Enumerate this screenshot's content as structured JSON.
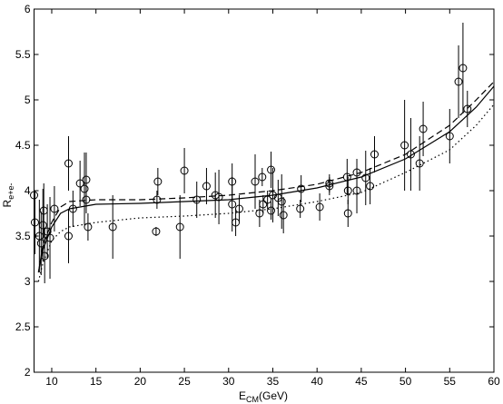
{
  "chart_data": {
    "type": "scatter",
    "x_label": "E",
    "x_label_sub": "CM",
    "x_label_unit": "(GeV)",
    "y_label": "R",
    "y_label_sub": "e+e-",
    "xlim": [
      8,
      60
    ],
    "ylim": [
      2,
      6
    ],
    "xticks": [
      10,
      15,
      20,
      25,
      30,
      35,
      40,
      45,
      50,
      55,
      60
    ],
    "yticks": [
      2,
      2.5,
      3,
      3.5,
      4,
      4.5,
      5,
      5.5,
      6
    ],
    "color": "#000000",
    "x": [
      8.0,
      8.1,
      8.6,
      8.8,
      9.0,
      9.1,
      9.2,
      9.5,
      9.8,
      10.3,
      11.9,
      11.9,
      12.4,
      13.2,
      13.7,
      13.9,
      13.9,
      14.1,
      16.9,
      21.8,
      22.0,
      21.9,
      25.0,
      24.5,
      26.4,
      27.5,
      28.5,
      28.9,
      30.4,
      30.4,
      30.8,
      31.2,
      33.0,
      33.5,
      33.8,
      33.9,
      34.4,
      34.8,
      34.8,
      35.0,
      35.6,
      36.0,
      36.2,
      38.2,
      38.1,
      40.3,
      41.4,
      41.4,
      43.4,
      43.5,
      43.5,
      44.5,
      44.5,
      45.5,
      46.0,
      46.5,
      49.9,
      50.6,
      51.6,
      52.0,
      55.0,
      56.0,
      56.5,
      57.0
    ],
    "y": [
      3.95,
      3.65,
      3.5,
      3.42,
      3.62,
      3.78,
      3.28,
      3.55,
      3.48,
      3.8,
      4.3,
      3.5,
      3.8,
      4.08,
      4.02,
      4.12,
      3.9,
      3.6,
      3.6,
      3.55,
      4.1,
      3.9,
      4.22,
      3.6,
      3.9,
      4.05,
      3.95,
      3.93,
      4.1,
      3.85,
      3.65,
      3.8,
      4.1,
      3.75,
      4.15,
      3.85,
      3.9,
      4.23,
      3.78,
      3.95,
      3.92,
      3.88,
      3.73,
      4.02,
      3.8,
      3.82,
      4.05,
      4.08,
      4.15,
      4.0,
      3.75,
      4.2,
      4.0,
      4.14,
      4.05,
      4.4,
      4.5,
      4.4,
      4.3,
      4.68,
      4.6,
      5.2,
      5.35,
      4.9
    ],
    "yerr": [
      0.25,
      0.35,
      0.4,
      0.35,
      0.4,
      0.3,
      0.3,
      0.3,
      0.45,
      0.25,
      0.3,
      0.3,
      0.2,
      0.25,
      0.4,
      0.3,
      0.15,
      0.15,
      0.35,
      0.05,
      0.15,
      0.1,
      0.25,
      0.35,
      0.2,
      0.2,
      0.25,
      0.3,
      0.2,
      0.3,
      0.15,
      0.15,
      0.3,
      0.15,
      0.1,
      0.1,
      0.1,
      0.2,
      0.1,
      0.3,
      0.2,
      0.3,
      0.2,
      0.15,
      0.1,
      0.15,
      0.1,
      0.1,
      0.2,
      0.15,
      0.15,
      0.15,
      0.25,
      0.3,
      0.2,
      0.2,
      0.5,
      0.4,
      0.3,
      0.3,
      0.3,
      0.4,
      0.5,
      0.2
    ],
    "curve_x": [
      8.5,
      9,
      10,
      11,
      12,
      15,
      20,
      25,
      30,
      35,
      40,
      45,
      50,
      55,
      58,
      60
    ],
    "curves": [
      {
        "dash": "solid",
        "values": [
          3.1,
          3.35,
          3.6,
          3.75,
          3.8,
          3.85,
          3.86,
          3.88,
          3.9,
          3.95,
          4.03,
          4.15,
          4.35,
          4.65,
          4.92,
          5.15
        ]
      },
      {
        "dash": "dashed",
        "values": [
          3.1,
          3.4,
          3.65,
          3.82,
          3.88,
          3.9,
          3.9,
          3.92,
          3.95,
          4.0,
          4.07,
          4.2,
          4.4,
          4.72,
          5.0,
          5.2
        ]
      },
      {
        "dash": "dotted",
        "values": [
          3.0,
          3.2,
          3.45,
          3.55,
          3.6,
          3.65,
          3.7,
          3.72,
          3.75,
          3.8,
          3.88,
          3.98,
          4.2,
          4.45,
          4.72,
          4.95
        ]
      }
    ]
  }
}
